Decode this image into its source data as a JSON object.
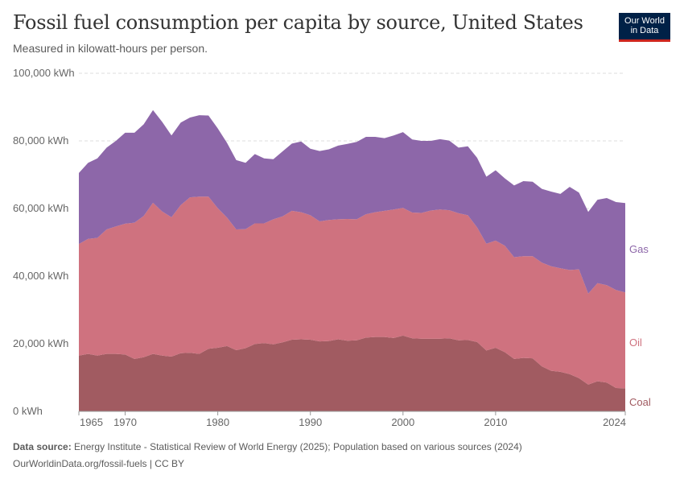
{
  "header": {
    "title": "Fossil fuel consumption per capita by source, United States",
    "subtitle": "Measured in kilowatt-hours per person.",
    "logo_line1": "Our World",
    "logo_line2": "in Data"
  },
  "footer": {
    "source_label": "Data source:",
    "source_text": "Energy Institute - Statistical Review of World Energy (2025); Population based on various sources (2024)",
    "url_text": "OurWorldinData.org/fossil-fuels | CC BY"
  },
  "chart_data": {
    "type": "area",
    "stacked": true,
    "ylim": [
      0,
      100000
    ],
    "xlim": [
      1965,
      2024
    ],
    "y_ticks": [
      0,
      20000,
      40000,
      60000,
      80000,
      100000
    ],
    "y_tick_labels": [
      "0 kWh",
      "20,000 kWh",
      "40,000 kWh",
      "60,000 kWh",
      "80,000 kWh",
      "100,000 kWh"
    ],
    "x_ticks": [
      1965,
      1970,
      1980,
      1990,
      2000,
      2010,
      2024
    ],
    "x_tick_labels": [
      "1965",
      "1970",
      "1980",
      "1990",
      "2000",
      "2010",
      "2024"
    ],
    "grid": "horizontal-dashed",
    "x": [
      1965,
      1966,
      1967,
      1968,
      1969,
      1970,
      1971,
      1972,
      1973,
      1974,
      1975,
      1976,
      1977,
      1978,
      1979,
      1980,
      1981,
      1982,
      1983,
      1984,
      1985,
      1986,
      1987,
      1988,
      1989,
      1990,
      1991,
      1992,
      1993,
      1994,
      1995,
      1996,
      1997,
      1998,
      1999,
      2000,
      2001,
      2002,
      2003,
      2004,
      2005,
      2006,
      2007,
      2008,
      2009,
      2010,
      2011,
      2012,
      2013,
      2014,
      2015,
      2016,
      2017,
      2018,
      2019,
      2020,
      2021,
      2022,
      2023,
      2024
    ],
    "series": [
      {
        "name": "Coal",
        "color": "#a15b61",
        "values": [
          16500,
          17000,
          16500,
          17000,
          17000,
          16800,
          15500,
          16000,
          17000,
          16500,
          16200,
          17200,
          17300,
          17000,
          18500,
          18800,
          19300,
          18100,
          18700,
          19900,
          20200,
          19800,
          20400,
          21200,
          21300,
          21200,
          20700,
          20800,
          21300,
          20900,
          21000,
          21800,
          22000,
          22000,
          21700,
          22400,
          21600,
          21500,
          21500,
          21500,
          21600,
          21000,
          21100,
          20500,
          18000,
          18800,
          17500,
          15500,
          15800,
          15700,
          13300,
          12000,
          11700,
          11000,
          9800,
          7900,
          8900,
          8500,
          6900,
          6800
        ]
      },
      {
        "name": "Oil",
        "color": "#cf727f",
        "values": [
          33000,
          34000,
          34800,
          36800,
          37700,
          38700,
          40300,
          41800,
          44700,
          42600,
          41200,
          43800,
          46000,
          46500,
          45000,
          41300,
          38000,
          35700,
          35200,
          35700,
          35400,
          37000,
          37300,
          38100,
          37600,
          36800,
          35500,
          35800,
          35500,
          36000,
          35800,
          36500,
          36900,
          37300,
          38000,
          37800,
          37200,
          37200,
          37900,
          38200,
          37900,
          37600,
          36900,
          33900,
          31600,
          31700,
          31500,
          30100,
          30100,
          30200,
          30700,
          30900,
          30600,
          30800,
          32200,
          26900,
          29000,
          28800,
          29000,
          28400
        ]
      },
      {
        "name": "Gas",
        "color": "#8d67a9",
        "values": [
          21000,
          22500,
          23500,
          24200,
          25300,
          26900,
          26600,
          27100,
          27400,
          26500,
          24200,
          24400,
          23600,
          24100,
          24000,
          23600,
          22100,
          20500,
          19600,
          20500,
          19200,
          17800,
          19200,
          19900,
          20900,
          19700,
          20800,
          20900,
          21800,
          22200,
          22900,
          22900,
          22300,
          21500,
          21900,
          22400,
          21600,
          21300,
          20600,
          20800,
          20600,
          19400,
          20400,
          20600,
          19800,
          20800,
          19900,
          21200,
          22200,
          22000,
          21800,
          22100,
          22000,
          24600,
          22700,
          24200,
          24700,
          25800,
          26000,
          26400
        ]
      }
    ],
    "inline_labels": [
      "Gas",
      "Oil",
      "Coal"
    ]
  }
}
